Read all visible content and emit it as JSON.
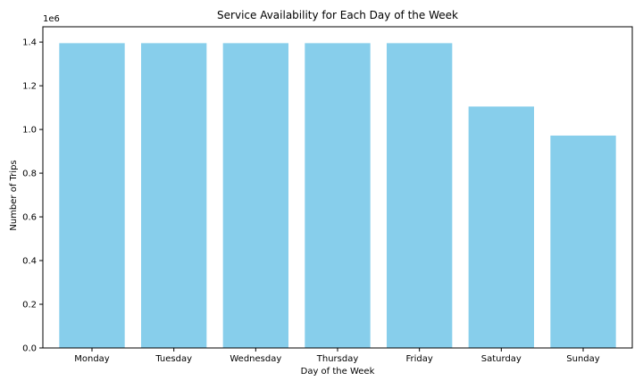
{
  "chart_data": {
    "type": "bar",
    "title": "Service Availability for Each Day of the Week",
    "xlabel": "Day of the Week",
    "ylabel": "Number of Trips",
    "categories": [
      "Monday",
      "Tuesday",
      "Wednesday",
      "Thursday",
      "Friday",
      "Saturday",
      "Sunday"
    ],
    "values": [
      1395000,
      1395000,
      1395000,
      1395000,
      1395000,
      1105000,
      972000
    ],
    "ylim": [
      0,
      1470000
    ],
    "yticks": [
      0,
      200000,
      400000,
      600000,
      800000,
      1000000,
      1200000,
      1400000
    ],
    "ytick_labels": [
      "0.0",
      "0.2",
      "0.4",
      "0.6",
      "0.8",
      "1.0",
      "1.2",
      "1.4"
    ],
    "y_offset_label": "1e6",
    "bar_color": "#87ceeb",
    "grid": false,
    "legend": "none"
  }
}
